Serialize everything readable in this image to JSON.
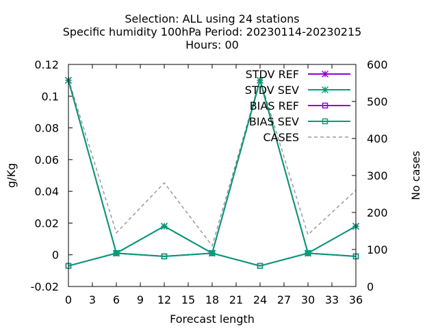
{
  "chart_data": {
    "type": "line",
    "title_lines": [
      "Selection: ALL using    24 stations",
      "Specific humidity 100hPa   Period: 20230114-20230215",
      "Hours:  00"
    ],
    "xlabel": "Forecast length",
    "ylabel": "g/Kg",
    "y2label": "No cases",
    "x": [
      0,
      6,
      12,
      18,
      24,
      30,
      36
    ],
    "xticks": [
      "0",
      "3",
      "6",
      "9",
      "12",
      "15",
      "18",
      "21",
      "24",
      "27",
      "30",
      "33",
      "36"
    ],
    "xlim": [
      0,
      36
    ],
    "ylim": [
      -0.02,
      0.12
    ],
    "yticks": [
      "-0.02",
      "0",
      "0.02",
      "0.04",
      "0.06",
      "0.08",
      "0.1",
      "0.12"
    ],
    "y2lim": [
      0,
      600
    ],
    "y2ticks": [
      "0",
      "100",
      "200",
      "300",
      "400",
      "500",
      "600"
    ],
    "legend_position": "top-right",
    "series": [
      {
        "name": "STDV REF",
        "axis": "y",
        "color": "#9400d3",
        "marker": "star",
        "dash": false,
        "values": [
          0.11,
          0.001,
          0.018,
          0.001,
          0.11,
          0.001,
          0.018
        ]
      },
      {
        "name": "STDV SEV",
        "axis": "y",
        "color": "#009e73",
        "marker": "star",
        "dash": false,
        "values": [
          0.11,
          0.001,
          0.018,
          0.001,
          0.11,
          0.001,
          0.018
        ]
      },
      {
        "name": "BIAS REF",
        "axis": "y",
        "color": "#9400d3",
        "marker": "square",
        "dash": false,
        "values": [
          -0.007,
          0.001,
          -0.001,
          0.001,
          -0.007,
          0.001,
          -0.001
        ]
      },
      {
        "name": "BIAS SEV",
        "axis": "y",
        "color": "#009e73",
        "marker": "square",
        "dash": false,
        "values": [
          -0.007,
          0.001,
          -0.001,
          0.001,
          -0.007,
          0.001,
          -0.001
        ]
      },
      {
        "name": "CASES",
        "axis": "y2",
        "color": "#999999",
        "marker": "none",
        "dash": true,
        "values": [
          560,
          145,
          280,
          110,
          560,
          140,
          260
        ]
      }
    ]
  }
}
